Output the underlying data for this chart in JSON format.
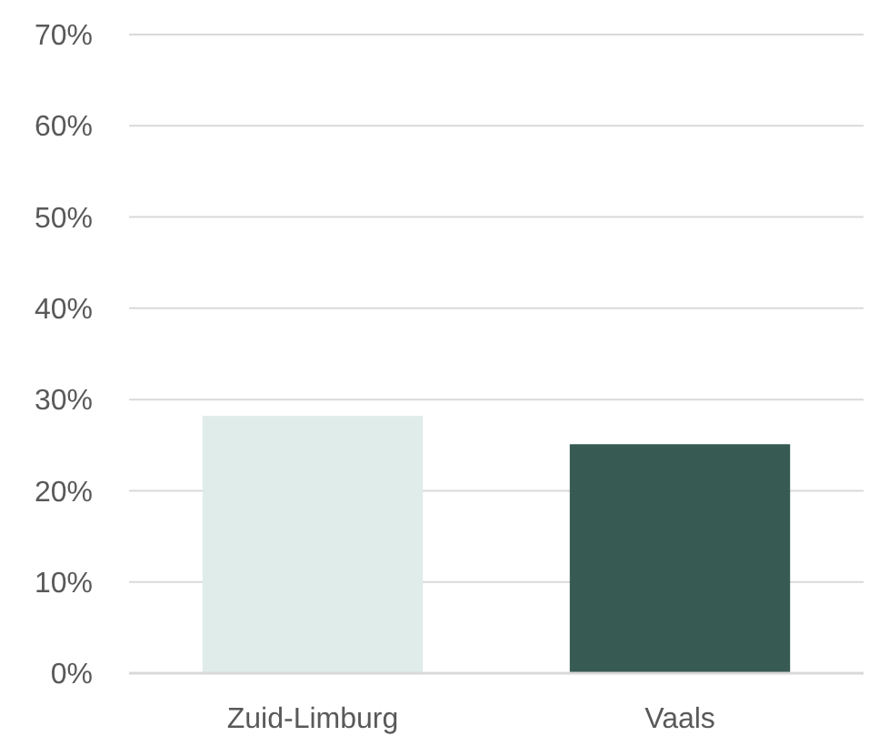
{
  "chart_data": {
    "type": "bar",
    "categories": [
      "Zuid-Limburg",
      "Vaals"
    ],
    "values": [
      28.2,
      25.1
    ],
    "colors": [
      "#e0ece9",
      "#375a53"
    ],
    "ylim": [
      0,
      70
    ],
    "yticks": [
      {
        "value": 0,
        "label": "0%"
      },
      {
        "value": 10,
        "label": "10%"
      },
      {
        "value": 20,
        "label": "20%"
      },
      {
        "value": 30,
        "label": "30%"
      },
      {
        "value": 40,
        "label": "40%"
      },
      {
        "value": 50,
        "label": "50%"
      },
      {
        "value": 60,
        "label": "60%"
      },
      {
        "value": 70,
        "label": "70%"
      }
    ],
    "grid": "y"
  }
}
